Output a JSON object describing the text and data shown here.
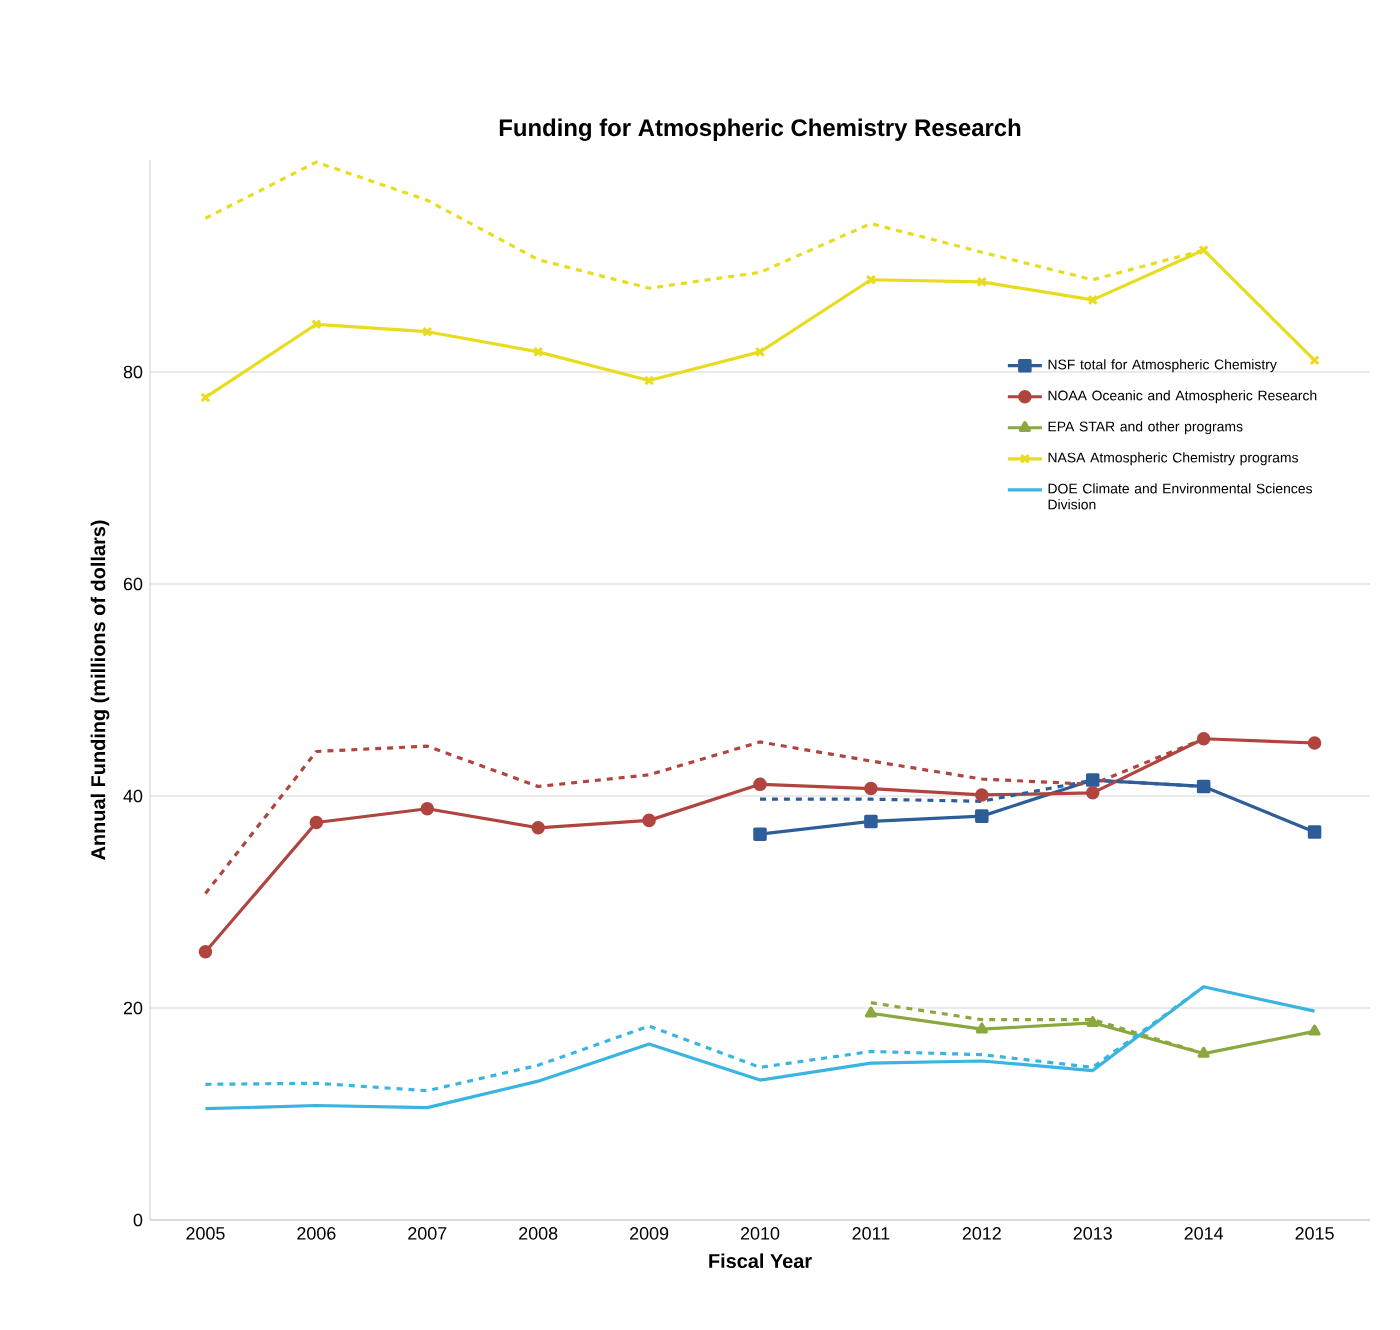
{
  "chart_data": {
    "type": "line",
    "title": "Funding for Atmospheric Chemistry Research",
    "xlabel": "Fiscal Year",
    "ylabel": "Annual Funding (millions of dollars)",
    "categories": [
      "2005",
      "2006",
      "2007",
      "2008",
      "2009",
      "2010",
      "2011",
      "2012",
      "2013",
      "2014",
      "2015"
    ],
    "ylim": [
      0,
      100
    ],
    "yticks": [
      0,
      20,
      40,
      60,
      80
    ],
    "grid": "y",
    "legend": "right",
    "series": [
      {
        "name": "NSF total for Atmospheric Chemistry",
        "color": "#2e5e9a",
        "marker": "square",
        "line_style": "solid",
        "values": [
          null,
          null,
          null,
          null,
          null,
          36.4,
          37.6,
          38.1,
          41.5,
          40.9,
          36.6
        ]
      },
      {
        "name": "NOAA Oceanic and Atmospheric Research",
        "color": "#b0453f",
        "marker": "circle",
        "line_style": "solid",
        "values": [
          25.3,
          37.5,
          38.8,
          37.0,
          37.7,
          41.1,
          40.7,
          40.1,
          40.3,
          45.4,
          45.0
        ]
      },
      {
        "name": "EPA STAR and other programs",
        "color": "#8aa83f",
        "marker": "triangle",
        "line_style": "solid",
        "values": [
          null,
          null,
          null,
          null,
          null,
          null,
          19.5,
          18.0,
          18.6,
          15.7,
          17.8
        ]
      },
      {
        "name": "NASA Atmospheric Chemistry  programs",
        "color": "#e8dc20",
        "marker": "cross",
        "line_style": "solid",
        "values": [
          77.6,
          84.5,
          83.8,
          81.9,
          79.2,
          81.9,
          88.7,
          88.5,
          86.8,
          91.5,
          81.1
        ]
      },
      {
        "name": "DOE Climate and Environmental Sciences Division",
        "color": "#3ab4e0",
        "marker": "none",
        "line_style": "solid",
        "values": [
          10.5,
          10.8,
          10.6,
          13.1,
          16.6,
          13.2,
          14.8,
          15.0,
          14.1,
          22.0,
          19.7
        ]
      },
      {
        "color": "#2e5e9a",
        "marker": "none",
        "line_style": "dashed",
        "values": [
          null,
          null,
          null,
          null,
          null,
          39.7,
          39.7,
          39.5,
          41.5,
          40.9,
          null
        ]
      },
      {
        "color": "#b0453f",
        "marker": "none",
        "line_style": "dashed",
        "values": [
          30.8,
          44.2,
          44.7,
          40.9,
          42.0,
          45.1,
          43.3,
          41.6,
          41.1,
          45.4,
          null
        ]
      },
      {
        "color": "#8aa83f",
        "marker": "none",
        "line_style": "dashed",
        "values": [
          null,
          null,
          null,
          null,
          null,
          null,
          20.5,
          18.9,
          18.9,
          15.7,
          null
        ]
      },
      {
        "color": "#e8dc20",
        "marker": "none",
        "line_style": "dashed",
        "values": [
          94.5,
          99.8,
          96.2,
          90.6,
          87.9,
          89.4,
          94.0,
          91.3,
          88.7,
          91.5,
          null
        ]
      },
      {
        "color": "#3ab4e0",
        "marker": "none",
        "line_style": "dashed",
        "values": [
          12.8,
          12.9,
          12.2,
          14.6,
          18.3,
          14.4,
          15.9,
          15.6,
          14.4,
          22.0,
          null
        ]
      }
    ]
  }
}
